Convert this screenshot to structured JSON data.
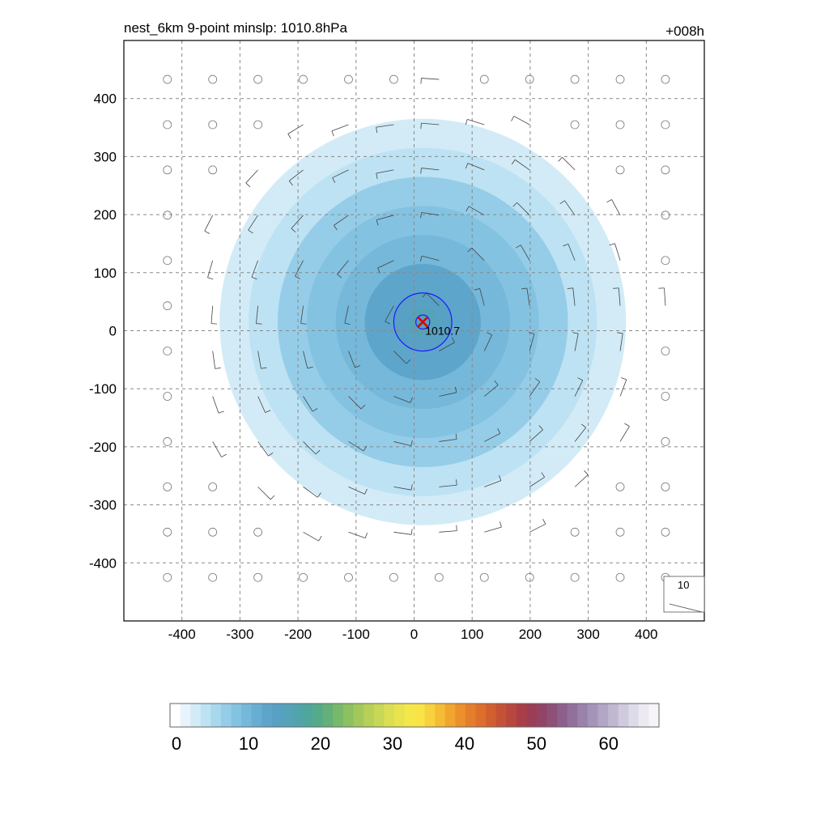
{
  "chart_data": {
    "type": "contour-map",
    "title": "nest_6km  9-point minslp: 1010.8hPa",
    "time_label": "+008h",
    "xlim": [
      -500,
      500
    ],
    "ylim": [
      -500,
      500
    ],
    "xticks": [
      -400,
      -300,
      -200,
      -100,
      0,
      100,
      200,
      300,
      400
    ],
    "yticks": [
      -400,
      -300,
      -200,
      -100,
      0,
      100,
      200,
      300,
      400
    ],
    "grid": true,
    "center": {
      "x": 15,
      "y": 15,
      "label": "1010.7"
    },
    "pressure_contours": [
      {
        "r": 12
      },
      {
        "r": 50
      }
    ],
    "wind_rings": [
      50,
      100,
      150,
      200,
      250,
      300,
      350
    ],
    "wind_speed_max_center": 16,
    "reference_vector": {
      "label": "10"
    },
    "colorbar": {
      "min": 0,
      "max": 67,
      "ticks": [
        0,
        10,
        20,
        30,
        40,
        50,
        60
      ],
      "colors": [
        "#ffffff",
        "#e8f4fb",
        "#d2ebf7",
        "#bde2f3",
        "#a8d8ee",
        "#95cde8",
        "#84c2e1",
        "#75b8da",
        "#68aed3",
        "#5ea5cc",
        "#58a0c4",
        "#55a2b9",
        "#52a4ac",
        "#4fa69c",
        "#55aa8a",
        "#64b078",
        "#78b86b",
        "#8dc062",
        "#a2c85c",
        "#b6d058",
        "#c8d756",
        "#d9de53",
        "#e8e34f",
        "#f3e74a",
        "#f8e445",
        "#f8d23e",
        "#f5bc36",
        "#f1a52f",
        "#ec902b",
        "#e57e2a",
        "#dd6e2c",
        "#d25f30",
        "#c55236",
        "#b8473e",
        "#a93e48",
        "#9c3d55",
        "#914466",
        "#8d5079",
        "#8d608b",
        "#91719b",
        "#9a83aa",
        "#a594b8",
        "#b2a6c5",
        "#c0b8d1",
        "#cfcadd",
        "#dedbe8",
        "#ede9f2",
        "#f6f4f8"
      ]
    }
  }
}
